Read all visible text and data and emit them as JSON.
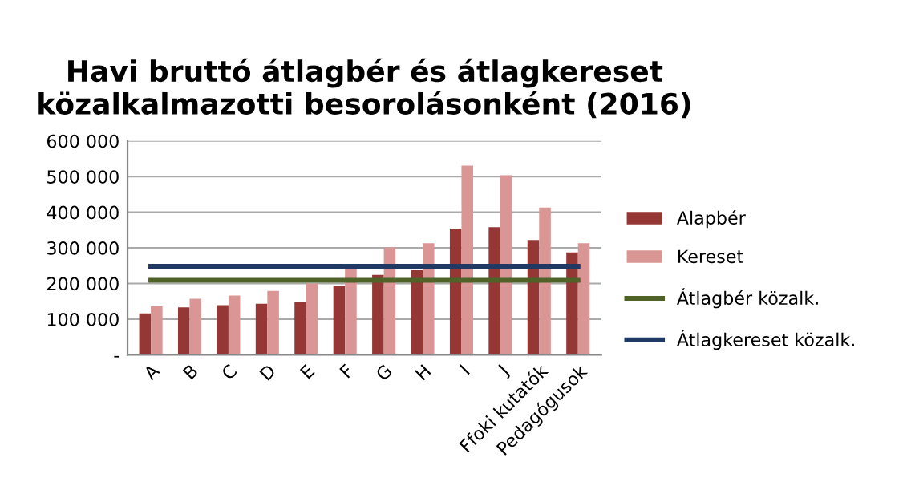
{
  "chart_data": {
    "type": "bar",
    "title": "Havi bruttó átlagbér és átlagkereset\nközalkalmazotti besorolásonként (2016)",
    "categories": [
      "A",
      "B",
      "C",
      "D",
      "E",
      "F",
      "G",
      "H",
      "I",
      "J",
      "Ffoki kutatók",
      "Pedagógusok"
    ],
    "series": [
      {
        "name": "Alapbér",
        "color": "#953735",
        "values": [
          116000,
          133000,
          139000,
          143000,
          149000,
          193000,
          224000,
          237000,
          354000,
          358000,
          322000,
          287000
        ]
      },
      {
        "name": "Kereset",
        "color": "#d99694",
        "values": [
          136000,
          157000,
          166000,
          179000,
          200000,
          247000,
          301000,
          313000,
          531000,
          504000,
          413000,
          313000
        ]
      },
      {
        "name": "Átlagbér közalk.",
        "type": "line",
        "color": "#4f6228",
        "values": [
          209000,
          209000,
          209000,
          209000,
          209000,
          209000,
          209000,
          209000,
          209000,
          209000,
          209000,
          209000
        ]
      },
      {
        "name": "Átlagkereset közalk.",
        "type": "line",
        "color": "#1f3864",
        "values": [
          248000,
          248000,
          248000,
          248000,
          248000,
          248000,
          248000,
          248000,
          248000,
          248000,
          248000,
          248000
        ]
      }
    ],
    "ylim": [
      0,
      600000
    ],
    "yticks": [
      {
        "value": 0,
        "label": "-"
      },
      {
        "value": 100000,
        "label": "100 000"
      },
      {
        "value": 200000,
        "label": "200 000"
      },
      {
        "value": 300000,
        "label": "300 000"
      },
      {
        "value": 400000,
        "label": "400 000"
      },
      {
        "value": 500000,
        "label": "500 000"
      },
      {
        "value": 600000,
        "label": "600 000"
      }
    ],
    "grid": "y",
    "legend": "right"
  }
}
